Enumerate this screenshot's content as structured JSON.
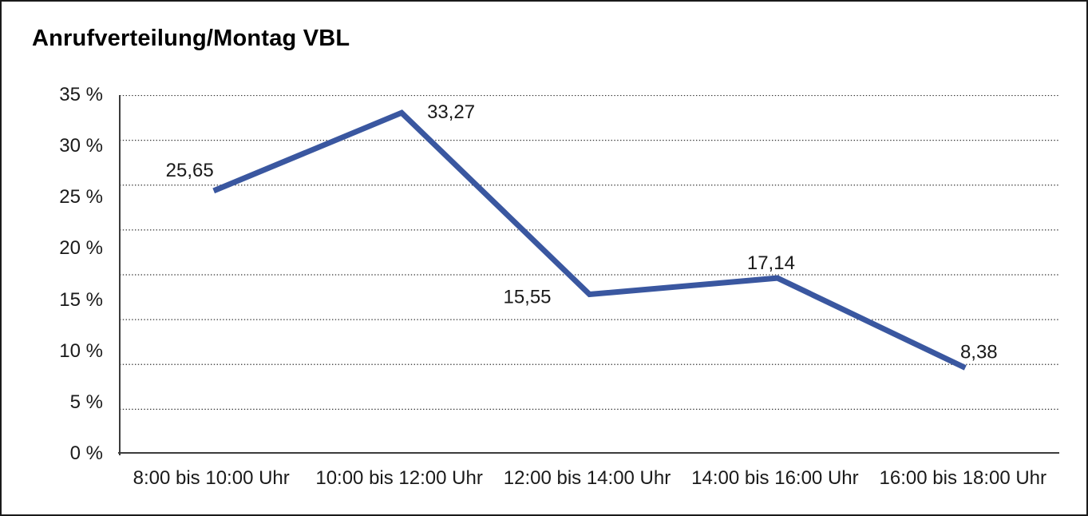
{
  "window": {
    "background": "#ffffff",
    "frame_border_color": "#1a1a1a"
  },
  "chart_data": {
    "type": "line",
    "title": "Anrufverteilung/Montag VBL",
    "categories": [
      "8:00 bis 10:00 Uhr",
      "10:00 bis 12:00 Uhr",
      "12:00 bis 14:00 Uhr",
      "14:00 bis 16:00 Uhr",
      "16:00 bis 18:00 Uhr"
    ],
    "series": [
      {
        "name": "Anrufverteilung",
        "values": [
          25.65,
          33.27,
          15.55,
          17.14,
          8.38
        ],
        "value_labels": [
          "25,65",
          "33,27",
          "15,55",
          "17,14",
          "8,38"
        ]
      }
    ],
    "y_tick_labels": [
      "35 %",
      "30 %",
      "25 %",
      "20 %",
      "15 %",
      "10 %",
      "5 %",
      "0 %"
    ],
    "ylim": [
      0,
      35
    ],
    "xlabel": "",
    "ylabel": "",
    "legend": "none",
    "grid": "horizontal dotted, 9 lines including solid baseline",
    "markers": "none",
    "line_color": "#3A57A0",
    "axis_color": "#3c3c3c",
    "gridline_color": "#333333",
    "label_color": "#1a1a1a"
  }
}
